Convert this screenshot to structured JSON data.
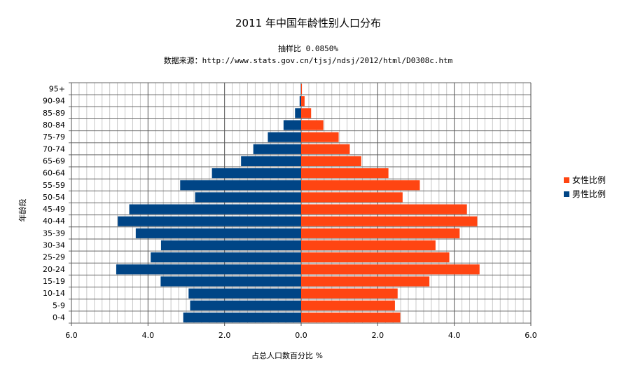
{
  "chart_data": {
    "type": "bar",
    "orientation": "horizontal-pyramid",
    "title": "2011 年中国年龄性别人口分布",
    "subtitle_lines": [
      "抽样比  0.0850%",
      "数据来源：http://www.stats.gov.cn/tjsj/ndsj/2012/html/D0308c.htm"
    ],
    "xlabel": "占总人口数百分比  %",
    "ylabel": "年龄段",
    "xlim": [
      -6,
      6
    ],
    "xticks": [
      "6.0",
      "4.0",
      "2.0",
      "0.0",
      "2.0",
      "4.0",
      "6.0"
    ],
    "grid": true,
    "legend_position": "right",
    "categories": [
      "95+",
      "90-94",
      "85-89",
      "80-84",
      "75-79",
      "70-74",
      "65-69",
      "60-64",
      "55-59",
      "50-54",
      "45-49",
      "40-44",
      "35-39",
      "30-34",
      "25-29",
      "20-24",
      "15-19",
      "10-14",
      "5-9",
      "0-4"
    ],
    "series": [
      {
        "name": "女性比例",
        "color": "#ff4512",
        "side": "right",
        "values": [
          0.02,
          0.09,
          0.26,
          0.58,
          0.98,
          1.27,
          1.57,
          2.28,
          3.1,
          2.65,
          4.33,
          4.6,
          4.14,
          3.51,
          3.87,
          4.66,
          3.35,
          2.52,
          2.45,
          2.59
        ]
      },
      {
        "name": "男性比例",
        "color": "#004586",
        "side": "left",
        "values": [
          0.01,
          0.04,
          0.16,
          0.46,
          0.87,
          1.25,
          1.57,
          2.33,
          3.16,
          2.77,
          4.49,
          4.79,
          4.32,
          3.66,
          3.93,
          4.83,
          3.67,
          2.94,
          2.9,
          3.08
        ]
      }
    ]
  }
}
